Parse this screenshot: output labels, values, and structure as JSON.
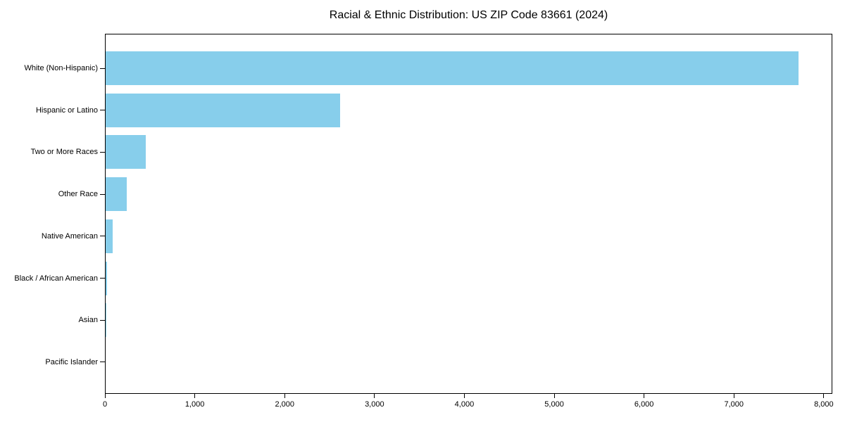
{
  "chart_data": {
    "type": "bar",
    "orientation": "horizontal",
    "title": "Racial & Ethnic Distribution: US ZIP Code 83661 (2024)",
    "categories": [
      "White (Non-Hispanic)",
      "Hispanic or Latino",
      "Two or More Races",
      "Other Race",
      "Native American",
      "Black / African American",
      "Asian",
      "Pacific Islander"
    ],
    "values": [
      7710,
      2607,
      444,
      237,
      78,
      12,
      4,
      0
    ],
    "bar_color": "#87CEEB",
    "axis_color": "#000000",
    "xlabel": "",
    "ylabel": "",
    "xlim": [
      0,
      8095
    ],
    "x_ticks": [
      0,
      1000,
      2000,
      3000,
      4000,
      5000,
      6000,
      7000,
      8000
    ],
    "x_tick_labels": [
      "0",
      "1,000",
      "2,000",
      "3,000",
      "4,000",
      "5,000",
      "6,000",
      "7,000",
      "8,000"
    ],
    "grid": false,
    "legend": null,
    "value_labels_shown": false
  }
}
